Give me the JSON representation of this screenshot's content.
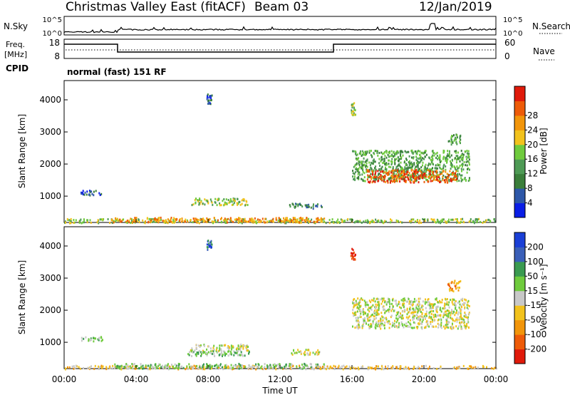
{
  "header": {
    "title": "Christmas Valley East (fitACF)",
    "beam": "Beam 03",
    "date": "12/Jan/2019"
  },
  "strip_noise": {
    "left_label": "N.Sky",
    "right_label": "N.Search",
    "left_ticks": [
      "10^5",
      "10^0"
    ],
    "right_ticks": [
      "10^5",
      "10^0"
    ]
  },
  "strip_freq": {
    "left_label": "Freq.",
    "left_unit": "[MHz]",
    "left_ticks": [
      "18",
      "8"
    ],
    "right_label": "Nave",
    "right_ticks": [
      "60",
      "0"
    ],
    "cpid_label": "CPID",
    "cpid_text": "normal (fast) 151 RF"
  },
  "colors": {
    "power": [
      "#0a1ee6",
      "#2d57a8",
      "#3a7e3a",
      "#4e9a55",
      "#6fcb3d",
      "#f2c21c",
      "#f2950a",
      "#ee5b08",
      "#e01a0a"
    ],
    "velocity": [
      "#e01a0a",
      "#ee5b08",
      "#f2950a",
      "#f2c21c",
      "#c8c8c8",
      "#6fcb3d",
      "#3a9a50",
      "#3a5fb8",
      "#1a3fd6"
    ]
  },
  "chart_data": [
    {
      "type": "heatmap",
      "name": "power",
      "ylabel": "Slant Range [km]",
      "yticks": [
        1000,
        2000,
        3000,
        4000
      ],
      "ylim": [
        180,
        4600
      ],
      "xlim": [
        0,
        24
      ],
      "colorbar_label": "Power [dB]",
      "colorbar_ticks": [
        "4",
        "8",
        "12",
        "16",
        "20",
        "24",
        "28"
      ],
      "regions": [
        {
          "t0": 0.0,
          "t1": 24.0,
          "r0": 190,
          "r1": 320,
          "level": 4
        },
        {
          "t0": 2.6,
          "t1": 14.5,
          "r0": 210,
          "r1": 360,
          "level": 6
        },
        {
          "t0": 7.0,
          "t1": 10.2,
          "r0": 740,
          "r1": 960,
          "level": 4
        },
        {
          "t0": 12.5,
          "t1": 14.3,
          "r0": 640,
          "r1": 800,
          "level": 2
        },
        {
          "t0": 16.0,
          "t1": 22.5,
          "r0": 1500,
          "r1": 2450,
          "level": 3
        },
        {
          "t0": 16.8,
          "t1": 21.8,
          "r0": 1450,
          "r1": 1850,
          "level": 7
        },
        {
          "t0": 15.9,
          "t1": 16.2,
          "r0": 3550,
          "r1": 3950,
          "level": 4
        },
        {
          "t0": 21.3,
          "t1": 22.0,
          "r0": 2600,
          "r1": 2950,
          "level": 3
        },
        {
          "t0": 7.9,
          "t1": 8.2,
          "r0": 3900,
          "r1": 4200,
          "level": 1
        },
        {
          "t0": 0.9,
          "t1": 2.1,
          "r0": 1050,
          "r1": 1200,
          "level": 1
        }
      ]
    },
    {
      "type": "heatmap",
      "name": "velocity",
      "xlabel": "Time UT",
      "ylabel": "Slant Range [km]",
      "yticks": [
        1000,
        2000,
        3000,
        4000
      ],
      "ylim": [
        180,
        4600
      ],
      "xlim": [
        0,
        24
      ],
      "xticks": [
        "00:00",
        "04:00",
        "08:00",
        "12:00",
        "16:00",
        "20:00",
        "00:00"
      ],
      "colorbar_label": "Velocity [m s⁻¹]",
      "colorbar_ticks": [
        "-200",
        "-100",
        "-50",
        "-15",
        "15",
        "50",
        "100",
        "200"
      ],
      "regions": [
        {
          "t0": 0.0,
          "t1": 24.0,
          "r0": 190,
          "r1": 300,
          "level": 3
        },
        {
          "t0": 2.6,
          "t1": 14.5,
          "r0": 210,
          "r1": 360,
          "level": 5
        },
        {
          "t0": 7.0,
          "t1": 10.2,
          "r0": 740,
          "r1": 960,
          "level": 4
        },
        {
          "t0": 6.8,
          "t1": 10.3,
          "r0": 600,
          "r1": 750,
          "level": 5
        },
        {
          "t0": 12.5,
          "t1": 14.3,
          "r0": 640,
          "r1": 800,
          "level": 4
        },
        {
          "t0": 16.0,
          "t1": 22.5,
          "r0": 1450,
          "r1": 2400,
          "level": 4
        },
        {
          "t0": 15.9,
          "t1": 16.2,
          "r0": 3600,
          "r1": 3950,
          "level": 0
        },
        {
          "t0": 21.3,
          "t1": 22.0,
          "r0": 2600,
          "r1": 2950,
          "level": 2
        },
        {
          "t0": 7.9,
          "t1": 8.2,
          "r0": 3900,
          "r1": 4200,
          "level": 7
        },
        {
          "t0": 0.9,
          "t1": 2.1,
          "r0": 1050,
          "r1": 1200,
          "level": 5
        }
      ]
    }
  ]
}
